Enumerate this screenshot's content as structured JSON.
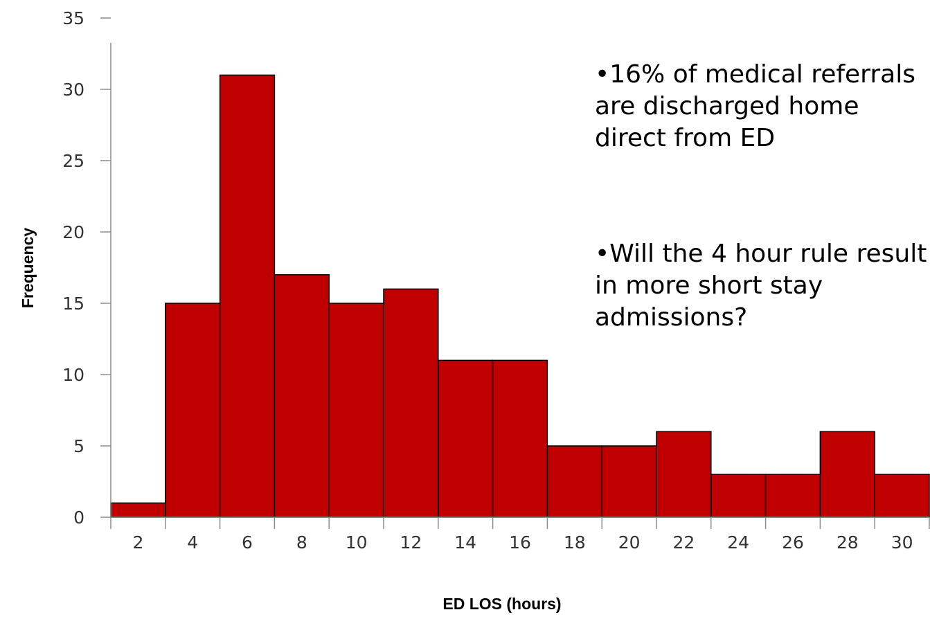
{
  "chart_data": {
    "type": "bar",
    "categories": [
      "2",
      "4",
      "6",
      "8",
      "10",
      "12",
      "14",
      "16",
      "18",
      "20",
      "22",
      "24",
      "26",
      "28",
      "30"
    ],
    "values": [
      1,
      15,
      31,
      17,
      15,
      16,
      11,
      11,
      5,
      5,
      6,
      3,
      3,
      6,
      3
    ],
    "xlabel": "ED LOS (hours)",
    "ylabel": "Frequency",
    "ylim": [
      0,
      35
    ],
    "yticks": [
      0,
      5,
      10,
      15,
      20,
      25,
      30,
      35
    ],
    "bar_color": "#c00000",
    "grid": false,
    "legend": "none"
  },
  "annotations": [
    {
      "lines": [
        "•16% of medical referrals",
        "are discharged home",
        "direct from ED"
      ]
    },
    {
      "lines": [
        "•Will the 4 hour rule result",
        "in more short stay",
        "admissions?"
      ]
    }
  ]
}
